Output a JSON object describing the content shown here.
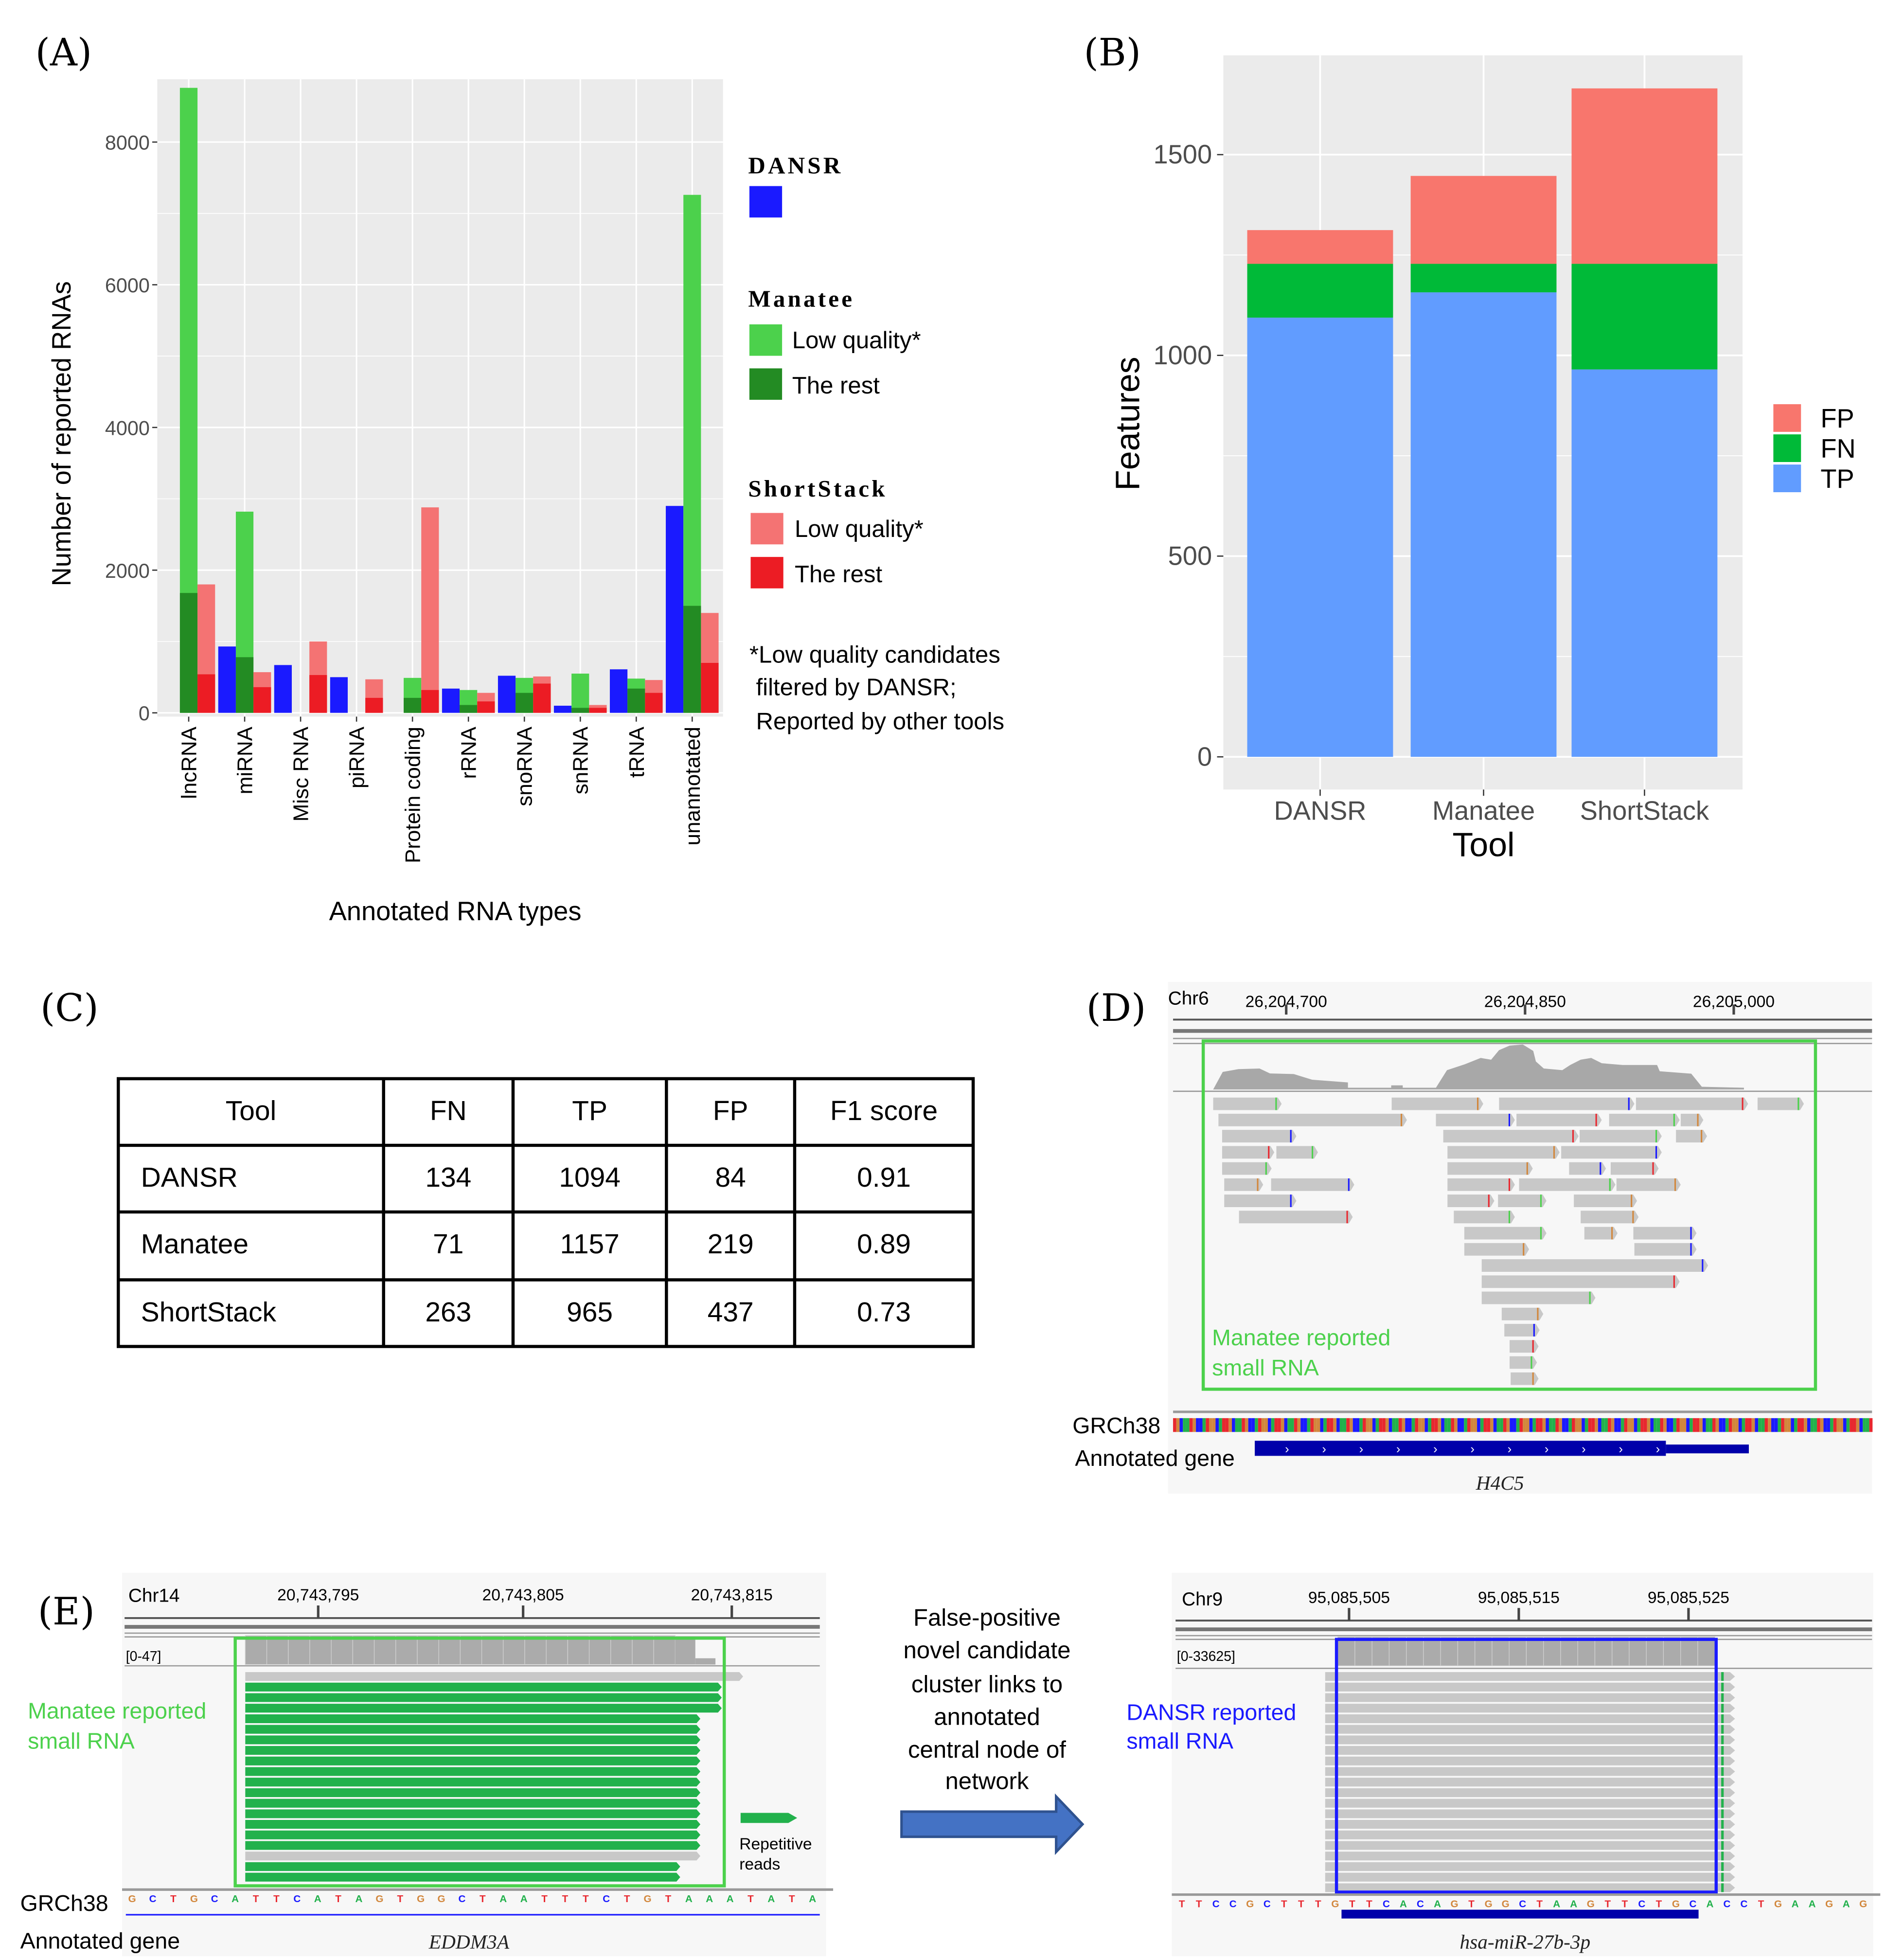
{
  "panel_labels": {
    "a": "(A)",
    "b": "(B)",
    "c": "(C)",
    "d": "(D)",
    "e": "(E)"
  },
  "colors": {
    "dansr": "#1a1aff",
    "manatee_low": "#4cd14c",
    "manatee_rest": "#238b23",
    "shortstack_low": "#f47373",
    "shortstack_rest": "#ec1c24",
    "tp": "#619cff",
    "fn": "#00ba38",
    "fp": "#f8766d",
    "plot_bg": "#ebebeb",
    "igv_bg": "#f7f7f7",
    "read": "#c8c8c8",
    "read_green": "#22b14c",
    "gene_blue": "#0000aa"
  },
  "chart_data": [
    {
      "type": "bar",
      "title": "",
      "xlabel": "Annotated RNA types",
      "ylabel": "Number of reported RNAs",
      "ylim": [
        0,
        8800
      ],
      "yticks": [
        "0",
        "2000",
        "4000",
        "6000",
        "8000"
      ],
      "ytick_values": [
        0,
        2000,
        4000,
        6000,
        8000
      ],
      "grid": true,
      "categories": [
        "lncRNA",
        "miRNA",
        "Misc RNA",
        "piRNA",
        "Protein coding",
        "rRNA",
        "snoRNA",
        "snRNA",
        "tRNA",
        "unannotated"
      ],
      "series": [
        {
          "name": "DANSR",
          "values": [
            0,
            930,
            670,
            500,
            0,
            340,
            520,
            100,
            610,
            2900
          ]
        },
        {
          "name": "Manatee total (Low quality* + The rest)",
          "values": [
            8760,
            2820,
            0,
            0,
            490,
            320,
            490,
            550,
            480,
            7260
          ]
        },
        {
          "name": "Manatee The rest",
          "values": [
            1680,
            780,
            0,
            0,
            210,
            110,
            280,
            70,
            340,
            1500
          ]
        },
        {
          "name": "ShortStack total (Low quality* + The rest)",
          "values": [
            1800,
            570,
            1000,
            470,
            2880,
            280,
            510,
            110,
            460,
            1400
          ]
        },
        {
          "name": "ShortStack The rest",
          "values": [
            540,
            360,
            530,
            210,
            320,
            160,
            410,
            70,
            280,
            700
          ]
        }
      ],
      "legend": {
        "placement": "right",
        "dansr_title": "DANSR",
        "manatee_title": "Manatee",
        "shortstack_title": "ShortStack",
        "low_quality": "Low quality*",
        "the_rest": "The rest",
        "note": [
          "*Low quality candidates",
          " filtered by DANSR;",
          " Reported by other tools"
        ]
      }
    },
    {
      "type": "bar",
      "stacked": true,
      "xlabel": "Tool",
      "ylabel": "Features",
      "ylim": [
        -80,
        1670
      ],
      "yticks": [
        "0",
        "500",
        "1000",
        "1500"
      ],
      "ytick_values": [
        0,
        500,
        1000,
        1500
      ],
      "grid": true,
      "categories": [
        "DANSR",
        "Manatee",
        "ShortStack"
      ],
      "series": [
        {
          "name": "TP",
          "values": [
            1094,
            1157,
            965
          ]
        },
        {
          "name": "FN",
          "values": [
            134,
            71,
            263
          ]
        },
        {
          "name": "FP",
          "values": [
            84,
            219,
            437
          ]
        }
      ],
      "legend": {
        "placement": "right",
        "order": [
          "FP",
          "FN",
          "TP"
        ]
      }
    }
  ],
  "table": {
    "headers": [
      "Tool",
      "FN",
      "TP",
      "FP",
      "F1 score"
    ],
    "rows": [
      [
        "DANSR",
        "134",
        "1094",
        "84",
        "0.91"
      ],
      [
        "Manatee",
        "71",
        "1157",
        "219",
        "0.89"
      ],
      [
        "ShortStack",
        "263",
        "965",
        "437",
        "0.73"
      ]
    ]
  },
  "panel_d": {
    "chrom": "Chr6",
    "ticks": [
      "26,204,700",
      "26,204,850",
      "26,205,000"
    ],
    "box_label": [
      "Manatee reported",
      "small RNA"
    ],
    "genome": "GRCh38",
    "gene_track": "Annotated gene",
    "gene": "H4C5"
  },
  "panel_e": {
    "left": {
      "chrom": "Chr14",
      "ticks": [
        "20,743,795",
        "20,743,805",
        "20,743,815"
      ],
      "range": "[0-47]",
      "box_label": [
        "Manatee reported",
        "small RNA"
      ],
      "legend": [
        "Repetitive",
        "reads"
      ],
      "genome": "GRCh38",
      "gene_track": "Annotated gene",
      "sequence": "GCTGCATTCATAGTGGCTAATTTCTGTAAATATA",
      "gene": "EDDM3A"
    },
    "caption": [
      "False-positive",
      "novel candidate",
      "cluster links to",
      "annotated",
      "central node of",
      "network"
    ],
    "right": {
      "chrom": "Chr9",
      "ticks": [
        "95,085,505",
        "95,085,515",
        "95,085,525"
      ],
      "range": "[0-33625]",
      "box_label": [
        "DANSR reported",
        "small RNA"
      ],
      "sequence": "TTCCGCTTTGTTCACAGTGGCTAAGTTCTGCACCTGAAGAG",
      "gene": "hsa-miR-27b-3p"
    }
  }
}
